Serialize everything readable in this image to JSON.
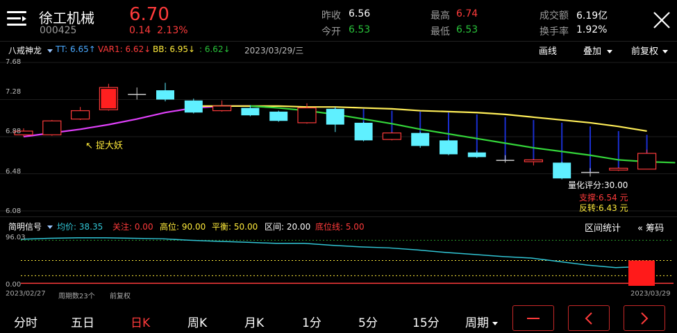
{
  "header": {
    "name": "徐工机械",
    "code": "000425",
    "price": "6.70",
    "change": "0.14",
    "change_pct": "2.13%",
    "quotes": [
      {
        "label": "昨收",
        "value": "6.56",
        "color": "#ffffff"
      },
      {
        "label": "今开",
        "value": "6.53",
        "color": "#29c23a"
      },
      {
        "label": "最高",
        "value": "6.74",
        "color": "#ff3b3b"
      },
      {
        "label": "最低",
        "value": "6.53",
        "color": "#29c23a"
      },
      {
        "label": "成交额",
        "value": "6.19亿",
        "color": "#ffffff"
      },
      {
        "label": "换手率",
        "value": "1.92%",
        "color": "#ffffff"
      }
    ]
  },
  "indicator_bar": {
    "name": "八戒神龙",
    "tt": "TT: 6.65↑",
    "var1": "VAR1: 6.62↓",
    "bb": "BB: 6.95↓",
    "colon": ": 6.62↓",
    "date": "2023/03/29/三",
    "tools": [
      "画线",
      "叠加",
      "前复权"
    ]
  },
  "chart_data": {
    "type": "candlestick",
    "y_axis": {
      "min": 6.08,
      "max": 7.68,
      "ticks": [
        "7.68",
        "7.28",
        "6.88",
        "6.48",
        "6.08"
      ]
    },
    "candles": [
      {
        "o": 6.9,
        "c": 6.94,
        "h": 6.97,
        "l": 6.88
      },
      {
        "o": 6.9,
        "c": 7.05,
        "h": 7.06,
        "l": 6.89
      },
      {
        "o": 7.07,
        "c": 7.16,
        "h": 7.2,
        "l": 7.06
      },
      {
        "o": 7.17,
        "c": 7.41,
        "h": 7.45,
        "l": 7.16
      },
      {
        "o": 7.34,
        "c": 7.34,
        "h": 7.41,
        "l": 7.28
      },
      {
        "o": 7.38,
        "c": 7.28,
        "h": 7.46,
        "l": 7.26
      },
      {
        "o": 7.27,
        "c": 7.14,
        "h": 7.29,
        "l": 7.13
      },
      {
        "o": 7.16,
        "c": 7.21,
        "h": 7.27,
        "l": 7.15
      },
      {
        "o": 7.19,
        "c": 7.11,
        "h": 7.22,
        "l": 7.1
      },
      {
        "o": 7.15,
        "c": 7.05,
        "h": 7.16,
        "l": 7.04
      },
      {
        "o": 7.03,
        "c": 7.19,
        "h": 7.24,
        "l": 7.02
      },
      {
        "o": 7.18,
        "c": 7.01,
        "h": 7.2,
        "l": 6.93
      },
      {
        "o": 7.03,
        "c": 6.84,
        "h": 7.04,
        "l": 6.83
      },
      {
        "o": 6.85,
        "c": 6.92,
        "h": 6.93,
        "l": 6.84
      },
      {
        "o": 6.92,
        "c": 6.78,
        "h": 6.93,
        "l": 6.76
      },
      {
        "o": 6.84,
        "c": 6.69,
        "h": 6.85,
        "l": 6.68
      },
      {
        "o": 6.71,
        "c": 6.66,
        "h": 6.73,
        "l": 6.65
      },
      {
        "o": 6.63,
        "c": 6.63,
        "h": 6.68,
        "l": 6.6
      },
      {
        "o": 6.61,
        "c": 6.63,
        "h": 6.64,
        "l": 6.57
      },
      {
        "o": 6.6,
        "c": 6.43,
        "h": 6.61,
        "l": 6.42
      },
      {
        "o": 6.5,
        "c": 6.5,
        "h": 6.54,
        "l": 6.45
      },
      {
        "o": 6.52,
        "c": 6.54,
        "h": 6.55,
        "l": 6.51
      },
      {
        "o": 6.53,
        "c": 6.7,
        "h": 6.74,
        "l": 6.53
      }
    ],
    "magenta_line": [
      6.88,
      6.92,
      6.96,
      7.01,
      7.07,
      7.14,
      7.19,
      7.21,
      7.21
    ],
    "green_line": [
      7.21,
      7.19,
      7.16,
      7.12,
      7.07,
      7.02,
      6.96,
      6.91,
      6.86,
      6.81,
      6.76,
      6.72,
      6.68,
      6.63,
      6.61,
      6.6
    ],
    "yellow_line": [
      7.21,
      7.21,
      7.21,
      7.21,
      7.2,
      7.2,
      7.19,
      7.18,
      7.16,
      7.15,
      7.14,
      7.12,
      7.09,
      7.06,
      7.03,
      6.99,
      6.94
    ],
    "blue_line_points": [
      [
        11,
        7.19
      ],
      [
        12,
        7.18
      ],
      [
        13,
        7.16
      ],
      [
        14,
        7.15
      ],
      [
        15,
        7.14
      ],
      [
        16,
        7.12
      ],
      [
        17,
        7.09
      ],
      [
        18,
        7.06
      ],
      [
        19,
        7.03
      ],
      [
        20,
        6.99
      ],
      [
        21,
        6.94
      ],
      [
        22,
        6.9
      ]
    ]
  },
  "annotations": {
    "catch": "↖ 捉大妖",
    "score": "量化评分:30.00",
    "support": "支撑:6.54 元",
    "reversal": "反转:6.43 元"
  },
  "sub_panel": {
    "name": "简明信号",
    "items": [
      {
        "text": "均价: 38.35",
        "color": "#31c6d6"
      },
      {
        "text": "关注: 0.00",
        "color": "#ff3b3b"
      },
      {
        "text": "高位: 90.00",
        "color": "#ffeb3b"
      },
      {
        "text": "平衡: 50.00",
        "color": "#ffeb3b"
      },
      {
        "text": "区间: 20.00",
        "color": "#ffffff"
      },
      {
        "text": "底位线: 5.00",
        "color": "#ff3b3b"
      }
    ],
    "range_stats": "区间统计",
    "chips": "筹码",
    "y_top": "96.03",
    "y_bottom": "0.00",
    "line_values": [
      92,
      94,
      95,
      95,
      94,
      93,
      90,
      88,
      86,
      84,
      84,
      80,
      77,
      75,
      71,
      66,
      62,
      58,
      55,
      48,
      41,
      36,
      38
    ],
    "bar_value": 50
  },
  "footer": {
    "start_date": "2023/02/27",
    "period_count": "周期数23个",
    "adjust": "前复权",
    "end_date": "2023/03/29"
  },
  "tabs": [
    "分时",
    "五日",
    "日K",
    "周K",
    "月K",
    "1分",
    "5分",
    "15分",
    "周期"
  ],
  "active_tab": 2,
  "colors": {
    "up": "#ff3b3b",
    "down": "#5ff0ff",
    "accent": "#ff3b3b",
    "green": "#29c23a"
  }
}
